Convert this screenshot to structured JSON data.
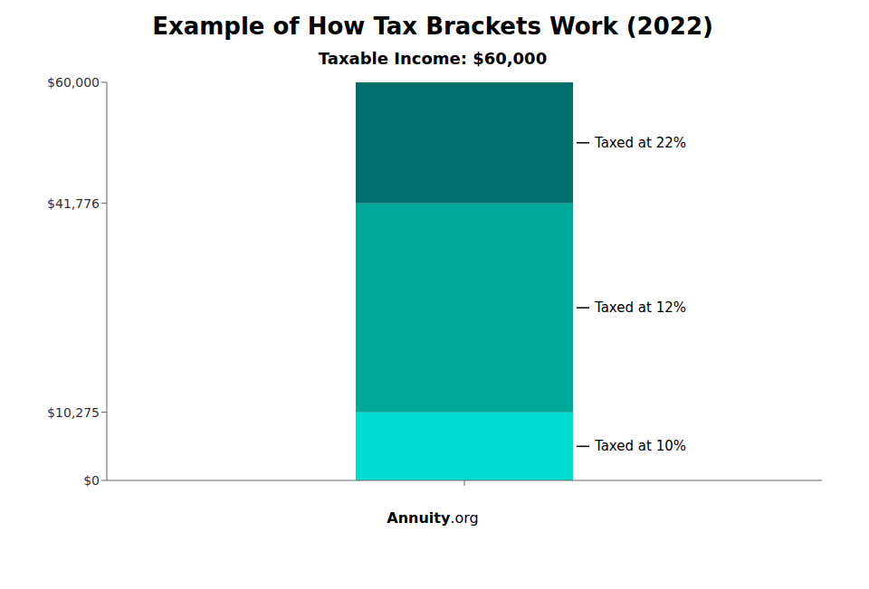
{
  "chart_data": {
    "type": "bar",
    "stacked": true,
    "title": "Example of How Tax Brackets Work (2022)",
    "subtitle": "Taxable Income: $60,000",
    "footer": [
      "Annuity",
      ".org"
    ],
    "categories": [
      null
    ],
    "series": [
      {
        "name": "Taxed at 10%",
        "color": "#00DDD0",
        "values": [
          10275
        ]
      },
      {
        "name": "Taxed at 12%",
        "color": "#00A89A",
        "values": [
          31501
        ]
      },
      {
        "name": "Taxed at 22%",
        "color": "#006E6B",
        "values": [
          18224
        ]
      }
    ],
    "ylim": [
      0,
      60000
    ],
    "yticks": [
      {
        "value": 0,
        "label": "$0"
      },
      {
        "value": 10275,
        "label": "$10,275"
      },
      {
        "value": 41776,
        "label": "$41,776"
      },
      {
        "value": 60000,
        "label": "$60,000"
      }
    ],
    "grid": false,
    "tick_labels": "y"
  }
}
